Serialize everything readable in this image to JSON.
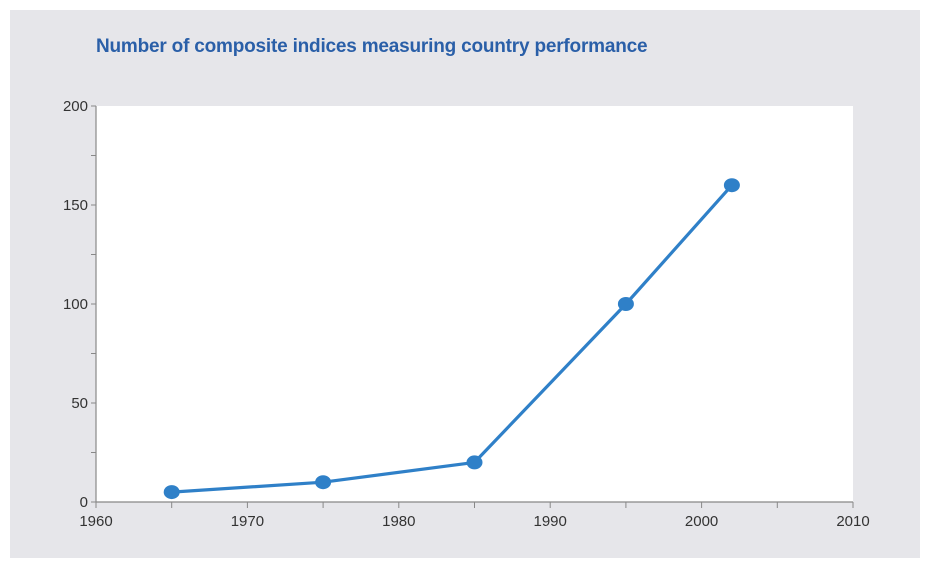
{
  "chart_data": {
    "type": "line",
    "title": "Number of composite indices measuring country performance",
    "xlabel": "",
    "ylabel": "",
    "xlim": [
      1960,
      2010
    ],
    "ylim": [
      0,
      200
    ],
    "x_ticks": [
      1960,
      1970,
      1980,
      1990,
      2000,
      2010
    ],
    "y_ticks": [
      0,
      50,
      100,
      150,
      200
    ],
    "grid": false,
    "series": [
      {
        "x": [
          1965,
          1975,
          1985,
          1995,
          2002
        ],
        "y": [
          5,
          10,
          20,
          100,
          160
        ]
      }
    ],
    "colors": {
      "line": "#2f80c8",
      "title": "#2a5fa8",
      "panel_background": "#e6e6ea",
      "plot_background": "#ffffff",
      "axis": "#888888"
    }
  }
}
